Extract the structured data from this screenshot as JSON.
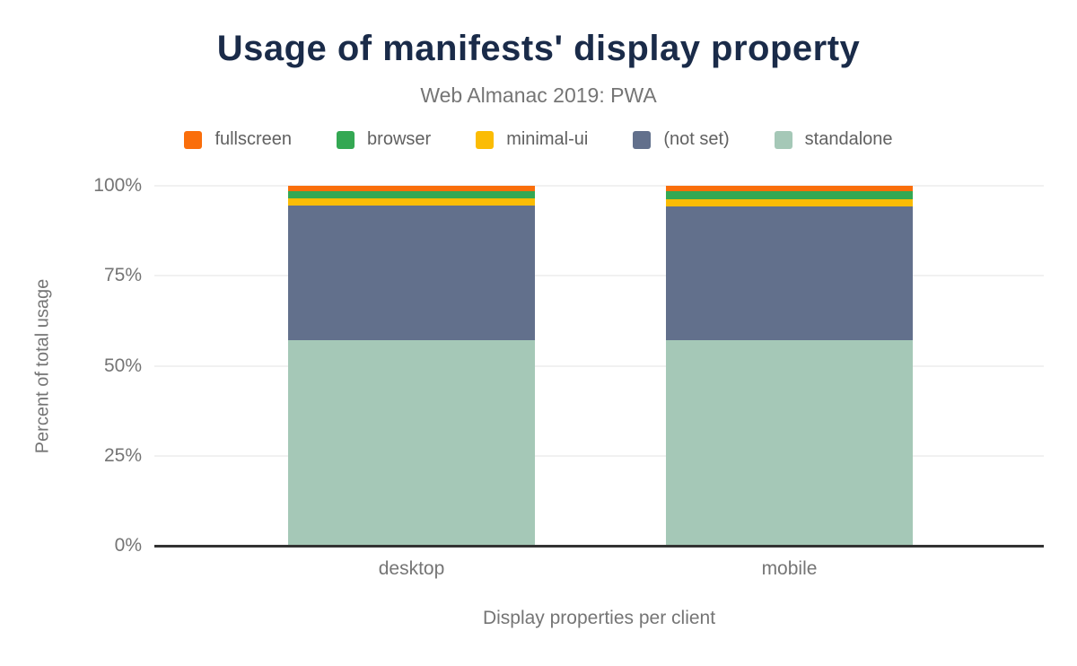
{
  "chart_data": {
    "type": "bar",
    "stacked": true,
    "title": "Usage of manifests' display property",
    "subtitle": "Web Almanac 2019: PWA",
    "xlabel": "Display properties per client",
    "ylabel": "Percent of total usage",
    "categories": [
      "desktop",
      "mobile"
    ],
    "y_ticks": [
      "0%",
      "25%",
      "50%",
      "75%",
      "100%"
    ],
    "y_tick_values": [
      0,
      25,
      50,
      75,
      100
    ],
    "ylim": [
      0,
      100
    ],
    "grid": "horizontal",
    "legend_position": "top",
    "series": [
      {
        "name": "fullscreen",
        "color": "#fa6e0b",
        "values": [
          1.4,
          1.4
        ]
      },
      {
        "name": "browser",
        "color": "#34a853",
        "values": [
          2.2,
          2.3
        ]
      },
      {
        "name": "minimal-ui",
        "color": "#fbbc04",
        "values": [
          2.0,
          2.0
        ]
      },
      {
        "name": "(not set)",
        "color": "#62708c",
        "values": [
          37.3,
          37.2
        ]
      },
      {
        "name": "standalone",
        "color": "#a5c8b7",
        "values": [
          57.1,
          57.1
        ]
      }
    ]
  },
  "style": {
    "title_color": "#1a2b49",
    "text_color": "#757575",
    "legend_text_color": "#616161",
    "gridline_color": "#f1f1f1",
    "baseline_color": "#333333",
    "background": "#ffffff"
  }
}
